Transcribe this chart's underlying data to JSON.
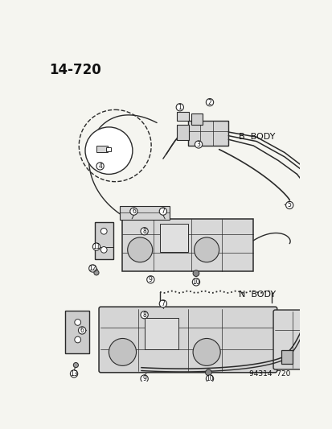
{
  "title": "14–720",
  "b_body_label": "B  BODY",
  "n_body_label": "N  BODY",
  "bottom_label": "94314  720",
  "bg_color": "#f5f5f0",
  "line_color": "#2a2a2a",
  "text_color": "#111111"
}
